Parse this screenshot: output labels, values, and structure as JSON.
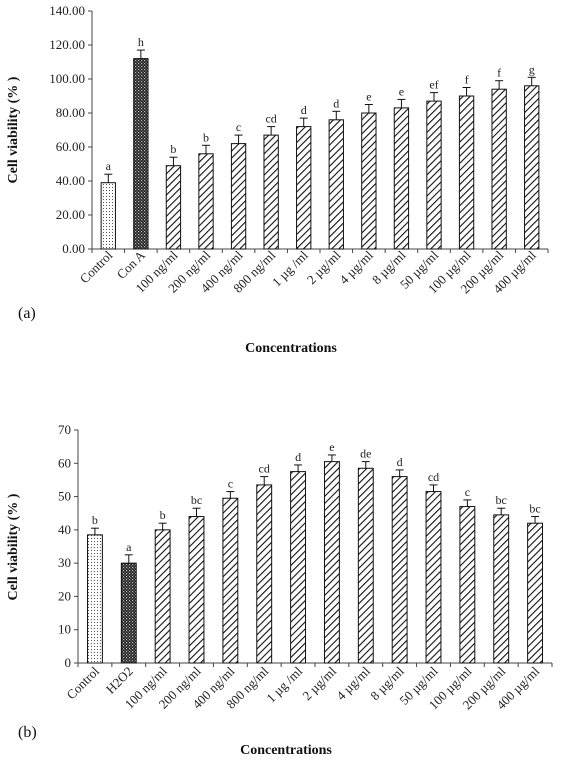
{
  "chart_data": [
    {
      "type": "bar",
      "panel_label": "(a)",
      "xlabel": "Concentrations",
      "ylabel": "Cell viability (% )",
      "ylim": [
        0,
        140
      ],
      "yticks": [
        "0.00",
        "20.00",
        "40.00",
        "60.00",
        "80.00",
        "100.00",
        "120.00",
        "140.00"
      ],
      "categories": [
        "Control",
        "Con A",
        "100 ng/ml",
        "200 ng/ml",
        "400 ng/ml",
        "800 ng/ml",
        "1 µg /ml",
        "2 µg/ml",
        "4 µg/ml",
        "8 µg/ml",
        "50 µg/ml",
        "100 µg/ml",
        "200 µg/ml",
        "400 µg/ml"
      ],
      "values": [
        39,
        112,
        49,
        56,
        62,
        67,
        72,
        76,
        80,
        83,
        87,
        90,
        94,
        96
      ],
      "errors": [
        5,
        5,
        5,
        5,
        5,
        5,
        5,
        5,
        5,
        5,
        5,
        5,
        5,
        5
      ],
      "letters": [
        "a",
        "h",
        "b",
        "b",
        "c",
        "cd",
        "d",
        "d",
        "e",
        "e",
        "ef",
        "f",
        "f",
        "g"
      ],
      "patterns": [
        "dots",
        "cross",
        "hatch",
        "hatch",
        "hatch",
        "hatch",
        "hatch",
        "hatch",
        "hatch",
        "hatch",
        "hatch",
        "hatch",
        "hatch",
        "hatch"
      ],
      "grid": false
    },
    {
      "type": "bar",
      "panel_label": "(b)",
      "xlabel": "Concentrations",
      "ylabel": "Cell viability (% )",
      "ylim": [
        0,
        70
      ],
      "yticks": [
        "0",
        "10",
        "20",
        "30",
        "40",
        "50",
        "60",
        "70"
      ],
      "categories": [
        "Control",
        "H2O2",
        "100 ng/ml",
        "200 ng/ml",
        "400 ng/ml",
        "800 ng/ml",
        "1 µg /ml",
        "2 µg/ml",
        "4 µg/ml",
        "8 µg/ml",
        "50 µg/ml",
        "100 µg/ml",
        "200 µg/ml",
        "400 µg/ml"
      ],
      "values": [
        38.5,
        30,
        40,
        44,
        49.5,
        53.5,
        57.5,
        60.5,
        58.5,
        56,
        51.5,
        47,
        44.5,
        42
      ],
      "errors": [
        2,
        2.5,
        2,
        2.5,
        2,
        2.5,
        2,
        2,
        2,
        2,
        2,
        2,
        2,
        2
      ],
      "letters": [
        "b",
        "a",
        "b",
        "bc",
        "c",
        "cd",
        "d",
        "e",
        "de",
        "d",
        "cd",
        "c",
        "bc",
        "bc"
      ],
      "patterns": [
        "dots",
        "cross",
        "hatch",
        "hatch",
        "hatch",
        "hatch",
        "hatch",
        "hatch",
        "hatch",
        "hatch",
        "hatch",
        "hatch",
        "hatch",
        "hatch"
      ],
      "grid": false
    }
  ]
}
